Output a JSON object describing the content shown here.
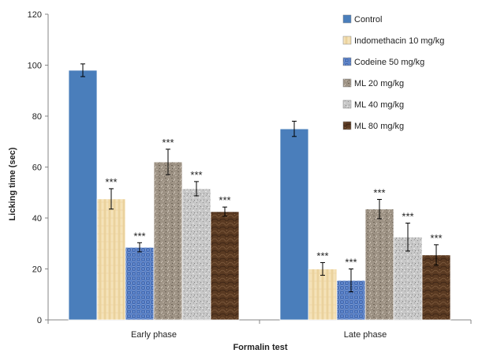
{
  "chart_data": {
    "type": "bar",
    "title": "",
    "xlabel": "Formalin test",
    "ylabel": "Licking time (sec)",
    "ylim": [
      0,
      120
    ],
    "yticks": [
      0,
      20,
      40,
      60,
      80,
      100,
      120
    ],
    "categories": [
      "Early phase",
      "Late phase"
    ],
    "legend_position": "top-right",
    "grid": false,
    "series": [
      {
        "name": "Control",
        "color": "#4a7ebb",
        "pattern": "solid",
        "values": [
          98,
          75
        ],
        "errors": [
          2.5,
          3
        ],
        "labels": [
          "",
          ""
        ]
      },
      {
        "name": "Indomethacin 10 mg/kg",
        "color": "#f2dcab",
        "pattern": "papyrus",
        "values": [
          47.5,
          20
        ],
        "errors": [
          4,
          2.5
        ],
        "labels": [
          "***",
          "***"
        ]
      },
      {
        "name": "Codeine 50 mg/kg",
        "color": "#5b83c9",
        "pattern": "woven",
        "values": [
          28.5,
          15.5
        ],
        "errors": [
          1.8,
          4.5
        ],
        "labels": [
          "***",
          "***"
        ]
      },
      {
        "name": "ML 20 mg/kg",
        "color": "#9e9385",
        "pattern": "granite",
        "values": [
          62,
          43.5
        ],
        "errors": [
          5,
          3.8
        ],
        "labels": [
          "***",
          "***"
        ]
      },
      {
        "name": "ML 40 mg/kg",
        "color": "#c8c8c8",
        "pattern": "speckle",
        "values": [
          51.5,
          32.5
        ],
        "errors": [
          2.8,
          5.5
        ],
        "labels": [
          "***",
          "***"
        ]
      },
      {
        "name": "ML 80 mg/kg",
        "color": "#5a3a22",
        "pattern": "marble",
        "values": [
          42.5,
          25.5
        ],
        "errors": [
          1.8,
          4
        ],
        "labels": [
          "***",
          "***"
        ]
      }
    ]
  }
}
